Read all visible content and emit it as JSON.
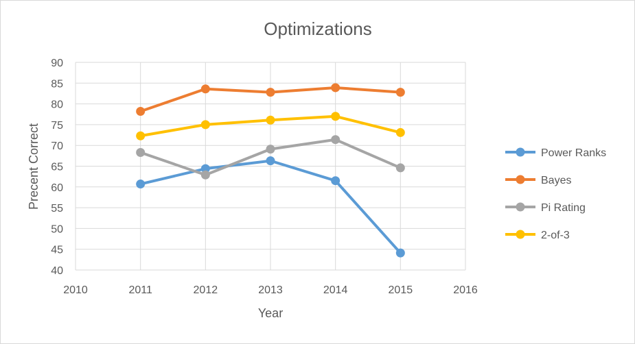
{
  "chart_data": {
    "type": "line",
    "title": "Optimizations",
    "xlabel": "Year",
    "ylabel": "Precent Correct",
    "xlim": [
      2010,
      2016
    ],
    "ylim": [
      40,
      90
    ],
    "x_ticks": [
      2010,
      2011,
      2012,
      2013,
      2014,
      2015,
      2016
    ],
    "y_ticks": [
      40,
      45,
      50,
      55,
      60,
      65,
      70,
      75,
      80,
      85,
      90
    ],
    "grid": "vertical-and-horizontal",
    "legend_position": "right",
    "series": [
      {
        "name": "Power Ranks",
        "color": "#5b9bd5",
        "x": [
          2011,
          2012,
          2013,
          2014,
          2015
        ],
        "values": [
          60.7,
          64.4,
          66.3,
          61.5,
          44.1
        ]
      },
      {
        "name": "Bayes",
        "color": "#ed7d31",
        "x": [
          2011,
          2012,
          2013,
          2014,
          2015
        ],
        "values": [
          78.2,
          83.6,
          82.8,
          83.9,
          82.8
        ]
      },
      {
        "name": "Pi Rating",
        "color": "#a5a5a5",
        "x": [
          2011,
          2012,
          2013,
          2014,
          2015
        ],
        "values": [
          68.3,
          62.9,
          69.1,
          71.4,
          64.6
        ]
      },
      {
        "name": "2-of-3",
        "color": "#ffc000",
        "x": [
          2011,
          2012,
          2013,
          2014,
          2015
        ],
        "values": [
          72.3,
          75.0,
          76.1,
          77.0,
          73.1
        ]
      }
    ]
  }
}
